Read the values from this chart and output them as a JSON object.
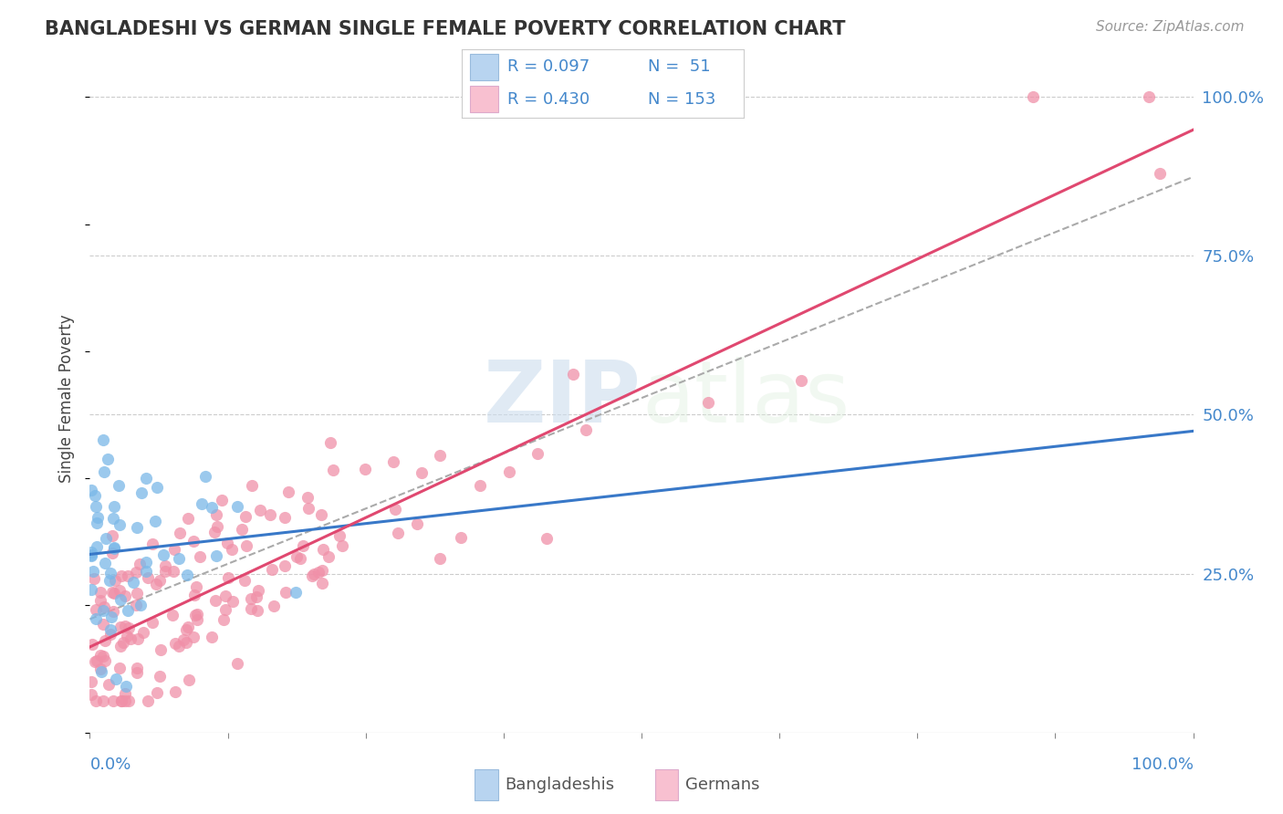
{
  "title": "BANGLADESHI VS GERMAN SINGLE FEMALE POVERTY CORRELATION CHART",
  "source": "Source: ZipAtlas.com",
  "ylabel": "Single Female Poverty",
  "ytick_vals": [
    0.25,
    0.5,
    0.75,
    1.0
  ],
  "watermark_zip": "ZIP",
  "watermark_atlas": "atlas",
  "blue_color": "#7ab8e8",
  "pink_color": "#f090a8",
  "blue_light": "#b8d4f0",
  "pink_light": "#f8c0d0",
  "blue_line_color": "#3878c8",
  "pink_line_color": "#e04870",
  "gray_dash_color": "#aaaaaa",
  "r_blue": 0.097,
  "r_pink": 0.43,
  "n_blue": 51,
  "n_pink": 153,
  "seed_blue": 12,
  "seed_pink": 99
}
